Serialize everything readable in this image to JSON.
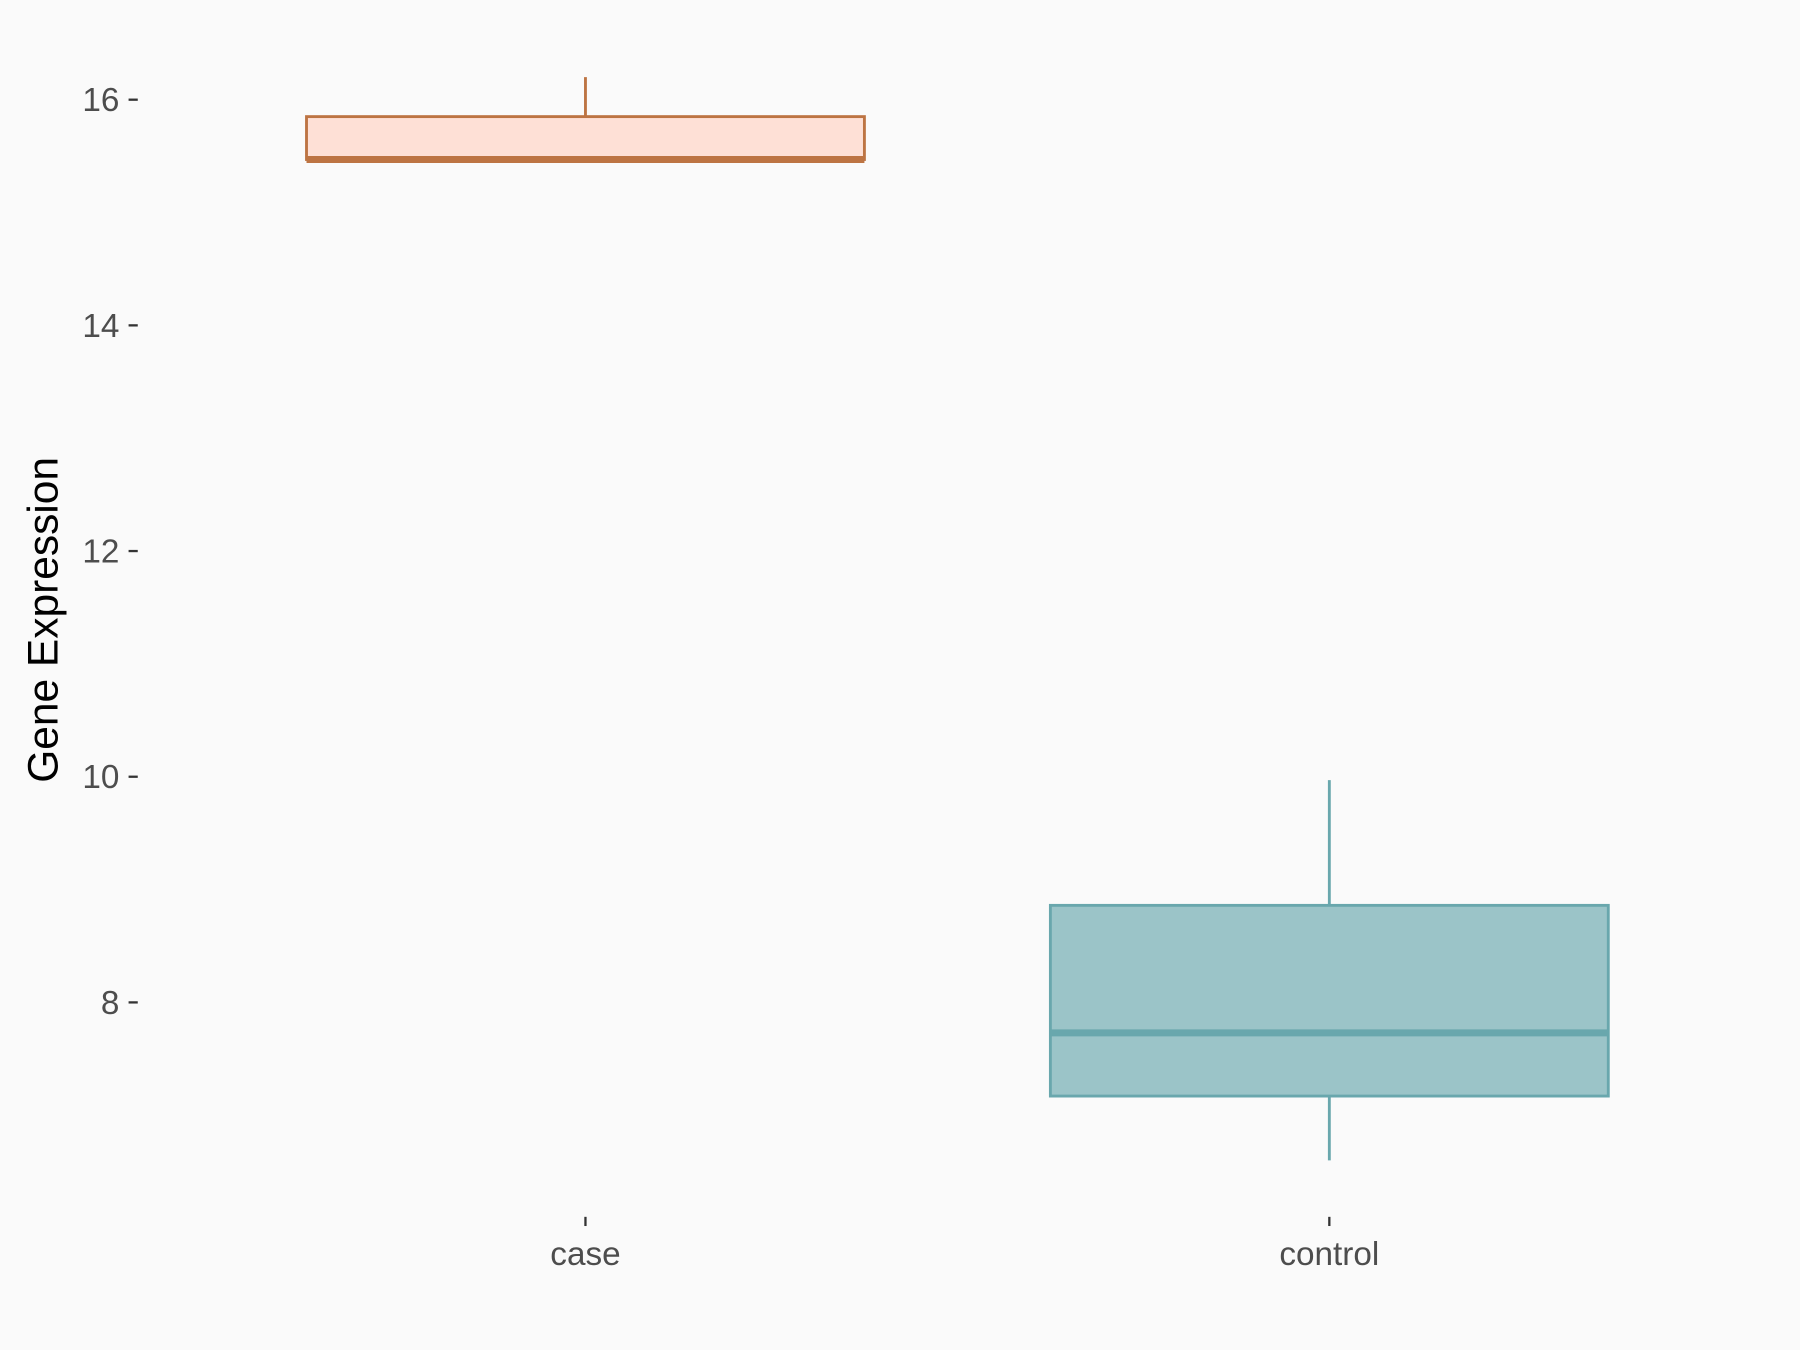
{
  "chart_data": {
    "type": "boxplot",
    "title": "",
    "xlabel": "",
    "ylabel": "Gene Expression",
    "ylim": [
      6.12,
      16.68
    ],
    "yticks": [
      8,
      10,
      12,
      14,
      16
    ],
    "grid": false,
    "legend": "none",
    "categories": [
      "case",
      "control"
    ],
    "boxes": [
      {
        "category": "case",
        "whisker_low": 15.44,
        "q1": 15.47,
        "median": 15.47,
        "q3": 15.85,
        "whisker_high": 16.2,
        "fill": "#FEE0D6",
        "stroke": "#BD7443"
      },
      {
        "category": "control",
        "whisker_low": 6.6,
        "q1": 7.17,
        "median": 7.73,
        "q3": 8.86,
        "whisker_high": 9.97,
        "fill": "#9BC4C8",
        "stroke": "#69A7AD"
      }
    ],
    "background": "#FAFAFA"
  }
}
